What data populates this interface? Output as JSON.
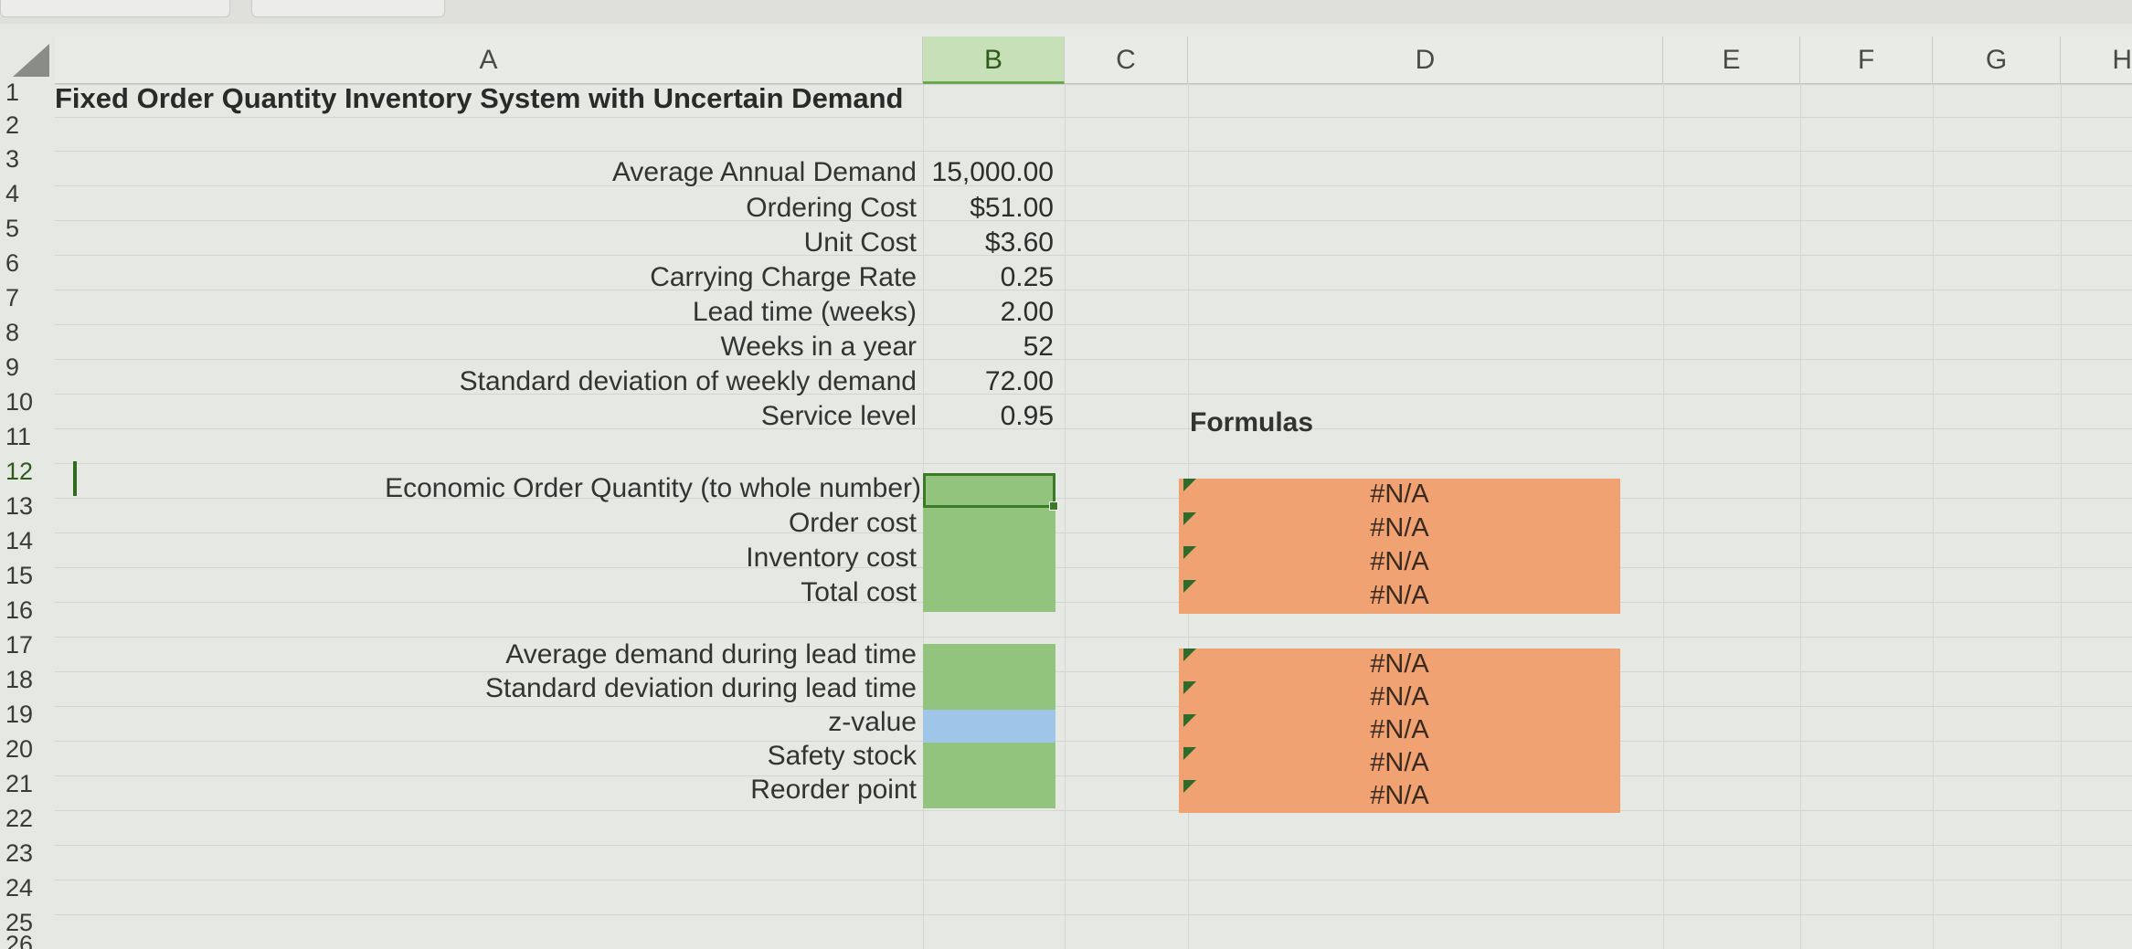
{
  "columns": [
    "A",
    "B",
    "C",
    "D",
    "E",
    "F",
    "G",
    "H"
  ],
  "rows": [
    "1",
    "2",
    "3",
    "4",
    "5",
    "6",
    "7",
    "8",
    "9",
    "10",
    "11",
    "12",
    "13",
    "14",
    "15",
    "16",
    "17",
    "18",
    "19",
    "20",
    "21",
    "22",
    "23",
    "24",
    "25",
    "26"
  ],
  "selected_row": "12",
  "selected_column": "B",
  "sheet": {
    "title": "Fixed Order Quantity Inventory System with Uncertain Demand",
    "inputs": [
      {
        "label": "Average Annual Demand",
        "value": "15,000.00"
      },
      {
        "label": "Ordering Cost",
        "value": "$51.00"
      },
      {
        "label": "Unit Cost",
        "value": "$3.60"
      },
      {
        "label": "Carrying Charge Rate",
        "value": "0.25"
      },
      {
        "label": "Lead time (weeks)",
        "value": "2.00"
      },
      {
        "label": "Weeks in a year",
        "value": "52"
      },
      {
        "label": "Standard deviation of weekly demand",
        "value": "72.00"
      },
      {
        "label": "Service level",
        "value": "0.95"
      }
    ],
    "formulas_heading": "Formulas",
    "outputs_a": [
      {
        "label": "Economic Order Quantity (to whole number)",
        "formula": "#N/A"
      },
      {
        "label": "Order cost",
        "formula": "#N/A"
      },
      {
        "label": "Inventory cost",
        "formula": "#N/A"
      },
      {
        "label": "Total cost",
        "formula": "#N/A"
      }
    ],
    "outputs_b": [
      {
        "label": "Average demand during lead time",
        "formula": "#N/A"
      },
      {
        "label": "Standard deviation during lead time",
        "formula": "#N/A"
      },
      {
        "label": "z-value",
        "formula": "#N/A"
      },
      {
        "label": "Safety stock",
        "formula": "#N/A"
      },
      {
        "label": "Reorder point",
        "formula": "#N/A"
      }
    ]
  },
  "colors": {
    "input_cell_green": "#93c47d",
    "zvalue_cell_blue": "#9fc5e8",
    "formula_cell_orange": "#f0a273",
    "selection_green": "#3c7a28"
  }
}
